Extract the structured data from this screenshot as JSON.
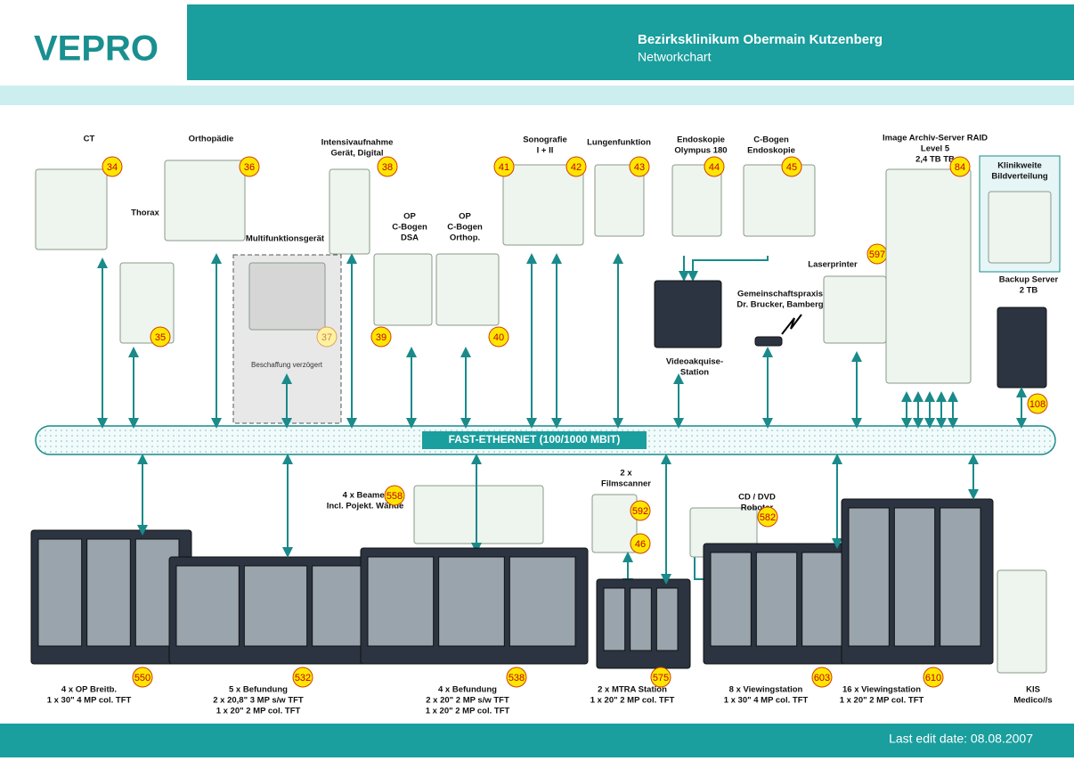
{
  "header": {
    "logo": "VEPRO",
    "title": "Bezirksklinikum Obermain Kutzenberg",
    "subtitle": "Networkchart"
  },
  "bus": {
    "label": "FAST-ETHERNET (100/1000 MBIT)"
  },
  "nodes": [
    {
      "label": [
        "CT"
      ],
      "badges": [
        34
      ]
    },
    {
      "label": [
        "Thorax"
      ],
      "badges": [
        35
      ]
    },
    {
      "label": [
        "Orthopädie"
      ],
      "badges": [
        36
      ]
    },
    {
      "label": [
        "Multifunktionsgerät"
      ],
      "badges": [
        37
      ],
      "note": "Beschaffung verzögert"
    },
    {
      "label": [
        "Intensivaufnahme",
        "Gerät, Digital"
      ],
      "badges": [
        38
      ]
    },
    {
      "label": [
        "OP",
        "C-Bogen",
        "DSA"
      ],
      "badges": [
        39
      ]
    },
    {
      "label": [
        "OP",
        "C-Bogen",
        "Orthop."
      ],
      "badges": [
        40
      ]
    },
    {
      "label": [
        "Sonografie",
        "I + II"
      ],
      "badges": [
        41,
        42
      ]
    },
    {
      "label": [
        "Lungenfunktion"
      ],
      "badges": [
        43
      ]
    },
    {
      "label": [
        "Endoskopie",
        "Olympus 180"
      ],
      "badges": [
        44
      ]
    },
    {
      "label": [
        "C-Bogen",
        "Endoskopie"
      ],
      "badges": [
        45
      ]
    },
    {
      "label": [
        "Videoakquise-",
        "Station"
      ],
      "badges": []
    },
    {
      "label": [
        "Gemeinschaftspraxis",
        "Dr. Brucker, Bamberg"
      ],
      "badges": []
    },
    {
      "label": [
        "Laserprinter"
      ],
      "badges": [
        597
      ]
    },
    {
      "label": [
        "Image Archiv-Server RAID",
        "Level 5",
        "2,4 TB TB"
      ],
      "badges": [
        84
      ]
    },
    {
      "label": [
        "Klinikweite",
        "Bildverteilung"
      ],
      "badges": []
    },
    {
      "label": [
        "Backup Server",
        "2 TB"
      ],
      "badges": [
        108
      ]
    },
    {
      "label": [
        "4 x OP Breitb.",
        "1 x 30\" 4 MP col. TFT"
      ],
      "badges": [
        550
      ]
    },
    {
      "label": [
        "5 x Befundung",
        "2 x 20,8\" 3 MP s/w TFT",
        "1 x 20\" 2 MP col. TFT"
      ],
      "badges": [
        532
      ]
    },
    {
      "label": [
        "4 x Beamer",
        "Incl. Pojekt. Wände"
      ],
      "badges": [
        558
      ]
    },
    {
      "label": [
        "4 x Befundung",
        "2 x 20\" 2 MP s/w TFT",
        "1 x 20\" 2 MP col. TFT"
      ],
      "badges": [
        538
      ]
    },
    {
      "label": [
        "2 x",
        "Filmscanner"
      ],
      "badges": [
        592,
        46
      ]
    },
    {
      "label": [
        "2 x MTRA Station",
        "1 x 20\" 2 MP col. TFT"
      ],
      "badges": [
        575
      ]
    },
    {
      "label": [
        "CD / DVD",
        "Roboter"
      ],
      "badges": [
        582
      ]
    },
    {
      "label": [
        "8 x Viewingstation",
        "1 x 30\" 4 MP col. TFT"
      ],
      "badges": [
        603
      ]
    },
    {
      "label": [
        "16 x Viewingstation",
        "1 x 20\" 2 MP col. TFT"
      ],
      "badges": [
        610
      ]
    },
    {
      "label": [
        "KIS",
        "Medico//s"
      ],
      "badges": []
    }
  ],
  "footer": {
    "text": "Last edit date: 08.08.2007"
  }
}
